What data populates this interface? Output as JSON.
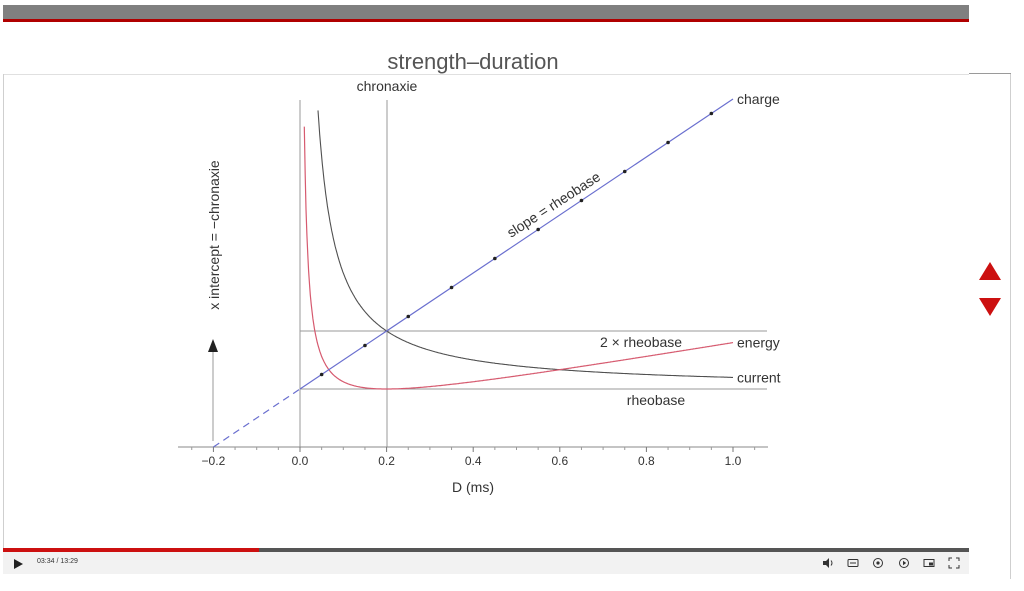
{
  "player": {
    "current_time": "03:34",
    "separator": "/",
    "duration": "13:29",
    "progress_fraction": 0.265
  },
  "colors": {
    "accent_red": "#b00000",
    "charge_line": "#6a6fcf",
    "energy_line": "#d65a6f",
    "current_line": "#505050"
  },
  "icons": {
    "play": "play-icon",
    "volume": "volume-icon",
    "captions": "captions-icon",
    "settings": "settings-icon",
    "autoplay": "autoplay-icon",
    "miniplayer": "miniplayer-icon",
    "fullscreen": "fullscreen-icon",
    "prev": "triangle-up-icon",
    "next": "triangle-down-icon"
  },
  "chart_data": {
    "type": "line",
    "title": "strength–duration",
    "xlabel": "D (ms)",
    "ylabel": "",
    "xlim": [
      -0.28,
      1.08
    ],
    "ylim": [
      0,
      3.4
    ],
    "x_ticks": [
      -0.2,
      0.0,
      0.2,
      0.4,
      0.6,
      0.8,
      1.0
    ],
    "x_tick_labels": [
      "−0.2",
      "0.0",
      "0.2",
      "0.4",
      "0.6",
      "0.8",
      "1.0"
    ],
    "grid": false,
    "chronaxie": 0.2,
    "rheobase": 0.5,
    "series": [
      {
        "name": "charge",
        "formula": "0.5*(D+0.2)/0.2",
        "dashed_x_range": [
          -0.2,
          0.0
        ],
        "markers_x": [
          0.05,
          0.15,
          0.25,
          0.35,
          0.45,
          0.55,
          0.65,
          0.75,
          0.85,
          0.95
        ]
      },
      {
        "name": "energy",
        "formula": "0.5*(D+0.2)^2/(0.8*D)"
      },
      {
        "name": "current",
        "formula": "0.5*(1+0.2/D)"
      }
    ],
    "annotations": {
      "chronaxie": "chronaxie",
      "slope": "slope = rheobase",
      "x_intercept": "x intercept = −chronaxie",
      "two_rheobase": "2 × rheobase",
      "rheobase": "rheobase"
    }
  }
}
